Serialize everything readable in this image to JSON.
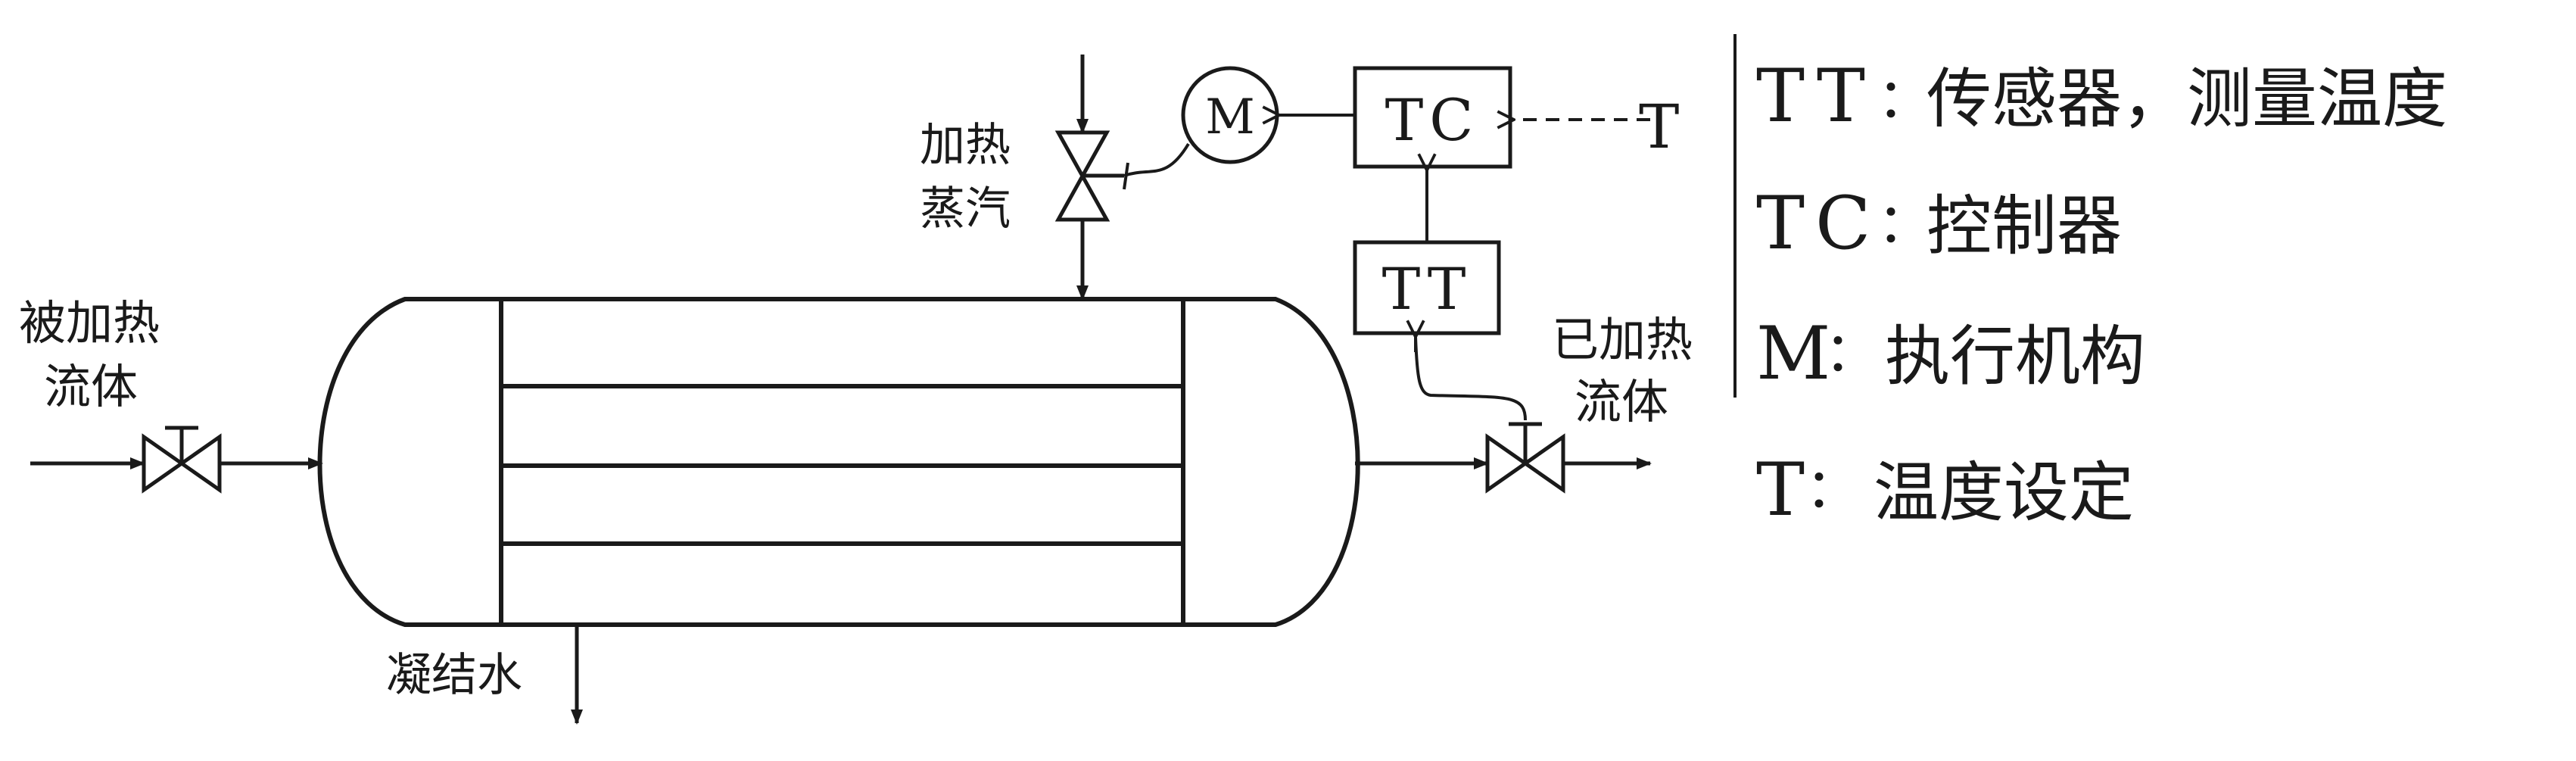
{
  "labels": {
    "inlet_fluid_line1": "被加热",
    "inlet_fluid_line2": "流体",
    "steam_line1": "加热",
    "steam_line2": "蒸汽",
    "outlet_fluid_line1": "已加热",
    "outlet_fluid_line2": "流体",
    "condensate": "凝结水"
  },
  "instruments": {
    "motor": "M",
    "controller": "TC",
    "transmitter": "TT",
    "setpoint": "T"
  },
  "legend": [
    {
      "key": "TT",
      "sep": "：",
      "desc": "传感器，测量温度"
    },
    {
      "key": "TC",
      "sep": "：",
      "desc": "控制器"
    },
    {
      "key": "M",
      "sep": "：",
      "desc": "执行机构"
    },
    {
      "key": "T",
      "sep": "：",
      "desc": "温度设定"
    }
  ]
}
